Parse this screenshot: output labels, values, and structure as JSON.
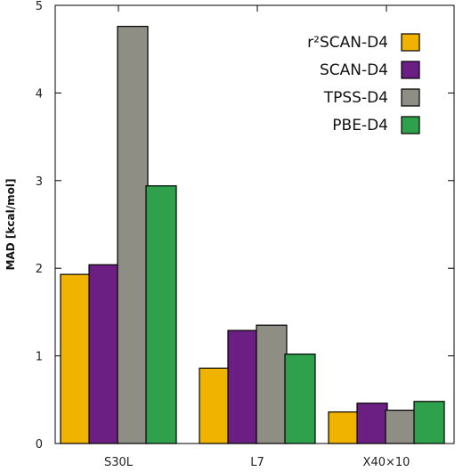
{
  "chart_data": {
    "type": "bar",
    "title": "",
    "xlabel": "",
    "ylabel": "MAD [kcal/mol]",
    "ylim": [
      0,
      5
    ],
    "yticks": [
      "0",
      "1",
      "2",
      "3",
      "4",
      "5"
    ],
    "categories": [
      "S30L",
      "L7",
      "X40×10"
    ],
    "series": [
      {
        "name": "r²SCAN-D4",
        "color": "#f0b400",
        "values": [
          1.93,
          0.86,
          0.36
        ]
      },
      {
        "name": "SCAN-D4",
        "color": "#6b1f82",
        "values": [
          2.04,
          1.29,
          0.46
        ]
      },
      {
        "name": "TPSS-D4",
        "color": "#8e8e84",
        "values": [
          4.76,
          1.35,
          0.38
        ]
      },
      {
        "name": "PBE-D4",
        "color": "#2fa04b",
        "values": [
          2.94,
          1.02,
          0.48
        ]
      }
    ],
    "legend": "top-right",
    "grid": false
  }
}
